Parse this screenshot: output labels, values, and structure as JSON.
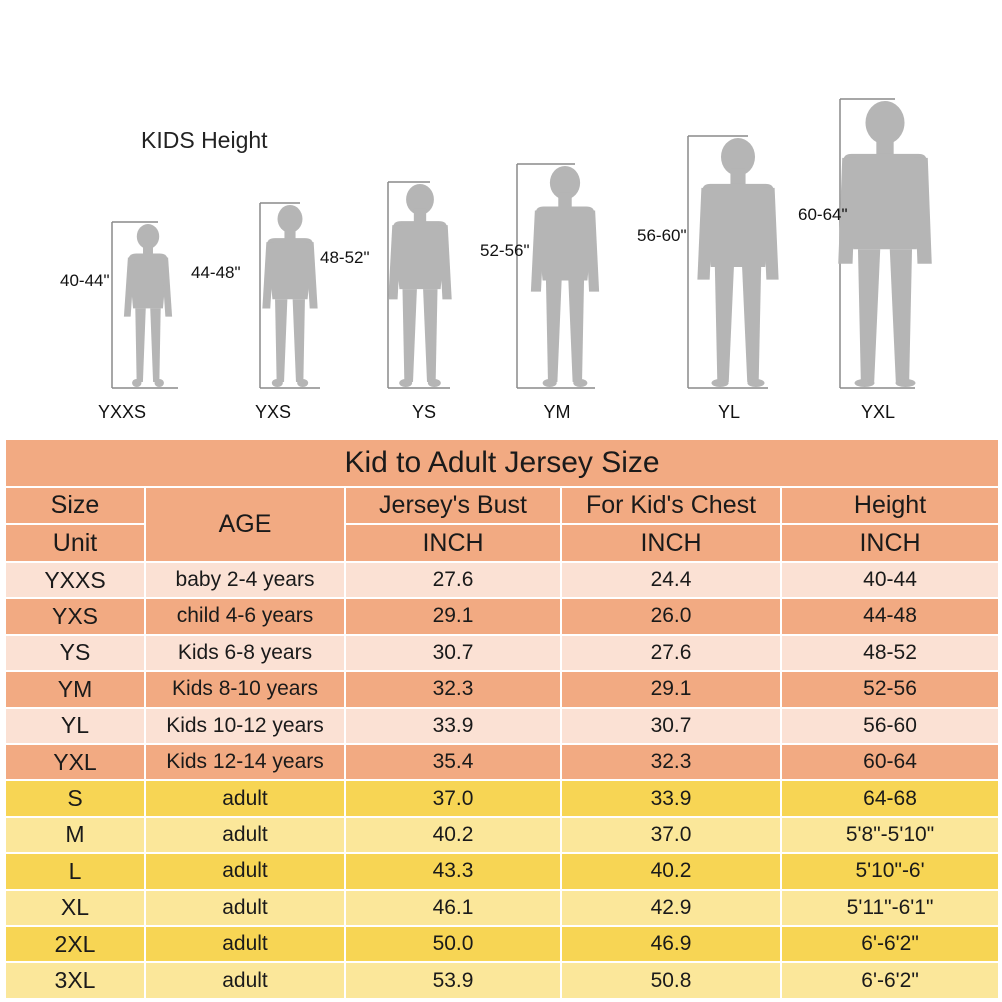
{
  "figures": {
    "title": "KIDS Height",
    "items": [
      {
        "size": "YXXS",
        "height": "40-44\""
      },
      {
        "size": "YXS",
        "height": "44-48\""
      },
      {
        "size": "YS",
        "height": "48-52\""
      },
      {
        "size": "YM",
        "height": "52-56\""
      },
      {
        "size": "YL",
        "height": "56-60\""
      },
      {
        "size": "YXL",
        "height": "60-64\""
      }
    ]
  },
  "table": {
    "title": "Kid to Adult Jersey Size",
    "headers": {
      "size_unit_top": "Size",
      "size_unit_bottom": "Unit",
      "age": "AGE",
      "bust": "Jersey's Bust",
      "chest": "For Kid's Chest",
      "height": "Height",
      "unit": "INCH"
    },
    "rows": [
      {
        "size": "YXXS",
        "age": "baby 2-4 years",
        "bust": "27.6",
        "chest": "24.4",
        "height": "40-44"
      },
      {
        "size": "YXS",
        "age": "child 4-6 years",
        "bust": "29.1",
        "chest": "26.0",
        "height": "44-48"
      },
      {
        "size": "YS",
        "age": "Kids 6-8 years",
        "bust": "30.7",
        "chest": "27.6",
        "height": "48-52"
      },
      {
        "size": "YM",
        "age": "Kids 8-10 years",
        "bust": "32.3",
        "chest": "29.1",
        "height": "52-56"
      },
      {
        "size": "YL",
        "age": "Kids 10-12 years",
        "bust": "33.9",
        "chest": "30.7",
        "height": "56-60"
      },
      {
        "size": "YXL",
        "age": "Kids 12-14 years",
        "bust": "35.4",
        "chest": "32.3",
        "height": "60-64"
      },
      {
        "size": "S",
        "age": "adult",
        "bust": "37.0",
        "chest": "33.9",
        "height": "64-68"
      },
      {
        "size": "M",
        "age": "adult",
        "bust": "40.2",
        "chest": "37.0",
        "height": "5'8\"-5'10\""
      },
      {
        "size": "L",
        "age": "adult",
        "bust": "43.3",
        "chest": "40.2",
        "height": "5'10\"-6'"
      },
      {
        "size": "XL",
        "age": "adult",
        "bust": "46.1",
        "chest": "42.9",
        "height": "5'11\"-6'1\""
      },
      {
        "size": "2XL",
        "age": "adult",
        "bust": "50.0",
        "chest": "46.9",
        "height": "6'-6'2\""
      },
      {
        "size": "3XL",
        "age": "adult",
        "bust": "53.9",
        "chest": "50.8",
        "height": "6'-6'2\""
      }
    ]
  },
  "colors": {
    "title_bg": "#f2aa82",
    "header_bg": "#f2aa82",
    "kid_row_dark": "#f2aa82",
    "kid_row_light": "#fbe1d4",
    "adult_row_dark": "#f7d554",
    "adult_row_light": "#fbe79a",
    "figure": "#b5b5b5",
    "measure_line": "#8a8a8a"
  }
}
